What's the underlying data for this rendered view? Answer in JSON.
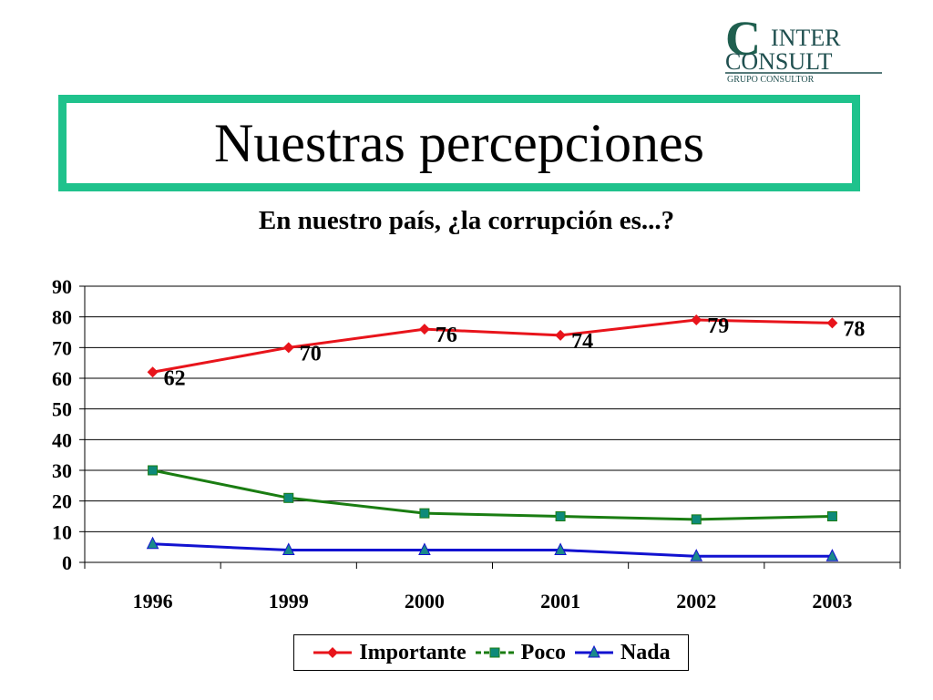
{
  "logo": {
    "line1": "INTER",
    "line2": "CONSULT",
    "line3": "GRUPO  CONSULTOR",
    "mark": "C"
  },
  "title": "Nuestras percepciones",
  "chart_data": {
    "type": "line",
    "title": "En nuestro país, ¿la corrupción es...?",
    "categories": [
      "1996",
      "1999",
      "2000",
      "2001",
      "2002",
      "2003"
    ],
    "ylim": [
      0,
      90
    ],
    "yticks": [
      0,
      10,
      20,
      30,
      40,
      50,
      60,
      70,
      80,
      90
    ],
    "grid": true,
    "legend_position": "bottom",
    "series": [
      {
        "name": "Importante",
        "values": [
          62,
          70,
          76,
          74,
          79,
          78
        ],
        "color": "#e8141b",
        "marker": "diamond",
        "labels": true
      },
      {
        "name": "Poco",
        "values": [
          30,
          21,
          16,
          15,
          14,
          15
        ],
        "color": "#1a7d12",
        "marker": "square",
        "marker_fill": "#0e8a7a",
        "labels": false
      },
      {
        "name": "Nada",
        "values": [
          6,
          4,
          4,
          4,
          2,
          2
        ],
        "color": "#1212d0",
        "marker": "triangle",
        "marker_fill": "#1a8a8a",
        "labels": false
      }
    ]
  }
}
